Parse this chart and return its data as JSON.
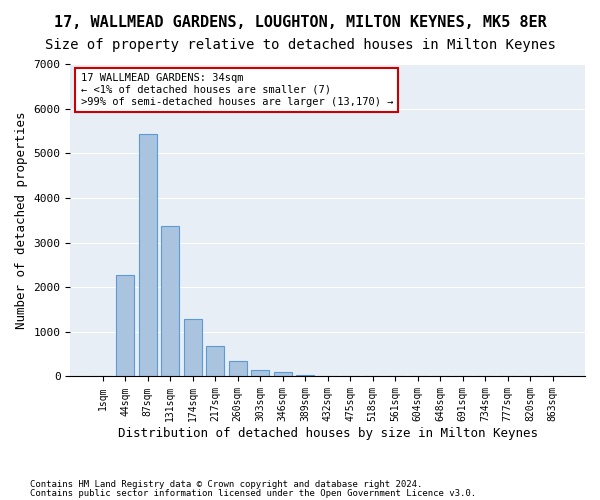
{
  "title": "17, WALLMEAD GARDENS, LOUGHTON, MILTON KEYNES, MK5 8ER",
  "subtitle": "Size of property relative to detached houses in Milton Keynes",
  "xlabel": "Distribution of detached houses by size in Milton Keynes",
  "ylabel": "Number of detached properties",
  "footnote1": "Contains HM Land Registry data © Crown copyright and database right 2024.",
  "footnote2": "Contains public sector information licensed under the Open Government Licence v3.0.",
  "bin_labels": [
    "1sqm",
    "44sqm",
    "87sqm",
    "131sqm",
    "174sqm",
    "217sqm",
    "260sqm",
    "303sqm",
    "346sqm",
    "389sqm",
    "432sqm",
    "475sqm",
    "518sqm",
    "561sqm",
    "604sqm",
    "648sqm",
    "691sqm",
    "734sqm",
    "777sqm",
    "820sqm",
    "863sqm"
  ],
  "bar_heights": [
    7,
    2280,
    5430,
    3380,
    1290,
    680,
    345,
    150,
    95,
    30,
    5,
    2,
    1,
    0,
    0,
    0,
    0,
    0,
    0,
    0,
    0
  ],
  "bar_color": "#aac4e0",
  "bar_edge_color": "#5b9bd5",
  "annotation_line1": "17 WALLMEAD GARDENS: 34sqm",
  "annotation_line2": "← <1% of detached houses are smaller (7)",
  "annotation_line3": ">99% of semi-detached houses are larger (13,170) →",
  "annotation_box_color": "#cc0000",
  "annotation_box_facecolor": "white",
  "ylim": [
    0,
    7000
  ],
  "yticks": [
    0,
    1000,
    2000,
    3000,
    4000,
    5000,
    6000,
    7000
  ],
  "bg_color": "#e8eef5",
  "grid_color": "white",
  "title_fontsize": 11,
  "subtitle_fontsize": 10,
  "xlabel_fontsize": 9,
  "ylabel_fontsize": 9
}
